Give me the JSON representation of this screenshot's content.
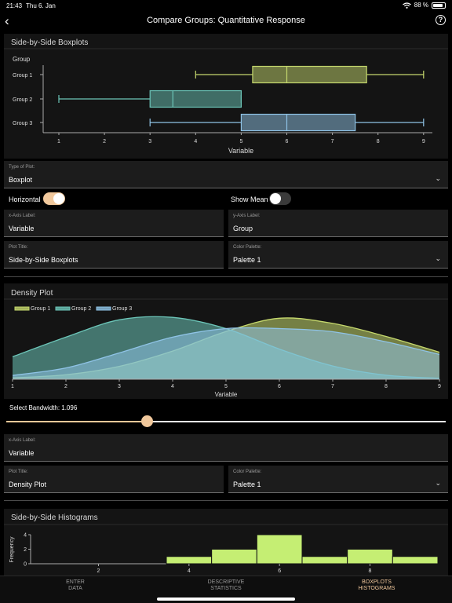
{
  "status": {
    "time": "21:43",
    "date": "Thu 6. Jan",
    "battery": "88 %",
    "battery_level": 0.88
  },
  "nav": {
    "title": "Compare Groups: Quantitative Response"
  },
  "boxplot": {
    "title": "Side-by-Side Boxplots",
    "chart_data": {
      "type": "boxplot",
      "orientation": "horizontal",
      "legend_title": "Group",
      "xlabel": "Variable",
      "xlim": [
        0.7,
        9.3
      ],
      "ticks": [
        "1",
        "2",
        "3",
        "4",
        "5",
        "6",
        "7",
        "8",
        "9"
      ],
      "groups": [
        {
          "name": "Group 1",
          "min": 4,
          "q1": 5.25,
          "median": 6,
          "q3": 7.75,
          "max": 9,
          "color": "#c5d86d"
        },
        {
          "name": "Group 2",
          "min": 1,
          "q1": 3,
          "median": 3.5,
          "q3": 5,
          "max": 5,
          "color": "#6cc5b8"
        },
        {
          "name": "Group 3",
          "min": 3,
          "q1": 5,
          "median": 6,
          "q3": 7.5,
          "max": 9,
          "color": "#8fc3e6"
        }
      ]
    }
  },
  "plot_type": {
    "label": "Type of Plot:",
    "value": "Boxplot"
  },
  "toggles": {
    "horizontal_label": "Horizontal",
    "horizontal_on": true,
    "mean_label": "Show Mean",
    "mean_on": false
  },
  "box_fields": {
    "xlabel_label": "x-Axis Label:",
    "xlabel_value": "Variable",
    "ylabel_label": "y-Axis Label:",
    "ylabel_value": "Group",
    "title_label": "Plot Title:",
    "title_value": "Side-by-Side Boxplots",
    "palette_label": "Color Palette:",
    "palette_value": "Palette 1"
  },
  "density": {
    "title": "Density Plot",
    "chart_data": {
      "type": "area",
      "xlabel": "Variable",
      "xlim": [
        1,
        9
      ],
      "ylim": [
        0,
        0.3
      ],
      "ticks": [
        "1",
        "2",
        "3",
        "4",
        "5",
        "6",
        "7",
        "8",
        "9"
      ],
      "series": [
        {
          "name": "Group 1",
          "color": "#c5d86d",
          "x": [
            1,
            2,
            3,
            4,
            5,
            6,
            7,
            8,
            9
          ],
          "y": [
            0.006,
            0.02,
            0.057,
            0.125,
            0.212,
            0.271,
            0.248,
            0.19,
            0.12
          ]
        },
        {
          "name": "Group 2",
          "color": "#6cc5b8",
          "x": [
            1,
            2,
            3,
            4,
            5,
            6,
            7,
            8,
            9
          ],
          "y": [
            0.1,
            0.187,
            0.264,
            0.275,
            0.225,
            0.134,
            0.059,
            0.018,
            0.004
          ]
        },
        {
          "name": "Group 3",
          "color": "#8fc3e6",
          "x": [
            1,
            2,
            3,
            4,
            5,
            6,
            7,
            8,
            9
          ],
          "y": [
            0.017,
            0.05,
            0.117,
            0.187,
            0.225,
            0.225,
            0.211,
            0.166,
            0.11
          ]
        }
      ]
    }
  },
  "bandwidth": {
    "label": "Select Bandwidth: 1.096",
    "value": 1.096,
    "fraction": 0.32
  },
  "density_fields": {
    "xlabel_label": "x-Axis Label:",
    "xlabel_value": "Variable",
    "title_label": "Plot Title:",
    "title_value": "Density Plot",
    "palette_label": "Color Palette:",
    "palette_value": "Palette 1"
  },
  "histogram": {
    "title": "Side-by-Side Histograms",
    "chart_data": {
      "type": "bar",
      "ylabel": "Frequency",
      "xlim": [
        0.5,
        9.5
      ],
      "ylim": [
        0,
        4
      ],
      "yticks": [
        "0",
        "2",
        "4"
      ],
      "xticks": [
        {
          "value": 2,
          "label": "2"
        },
        {
          "value": 4,
          "label": "4"
        },
        {
          "value": 6,
          "label": "6"
        },
        {
          "value": 8,
          "label": "8"
        }
      ],
      "bins": [
        {
          "start": 3.5,
          "end": 4.5,
          "count": 1
        },
        {
          "start": 4.5,
          "end": 5.5,
          "count": 2
        },
        {
          "start": 5.5,
          "end": 6.5,
          "count": 4
        },
        {
          "start": 6.5,
          "end": 7.5,
          "count": 1
        },
        {
          "start": 7.5,
          "end": 8.5,
          "count": 2
        },
        {
          "start": 8.5,
          "end": 9.5,
          "count": 1
        }
      ],
      "color": "#c5ee73"
    }
  },
  "tabs": [
    {
      "line1": "ENTER",
      "line2": "DATA"
    },
    {
      "line1": "DESCRIPTIVE",
      "line2": "STATISTICS"
    },
    {
      "line1": "BOXPLOTS",
      "line2": "HISTOGRAMS"
    }
  ],
  "colors": {
    "accent": "#f1c89c",
    "card": "#141414",
    "field": "#1c1c1c"
  }
}
